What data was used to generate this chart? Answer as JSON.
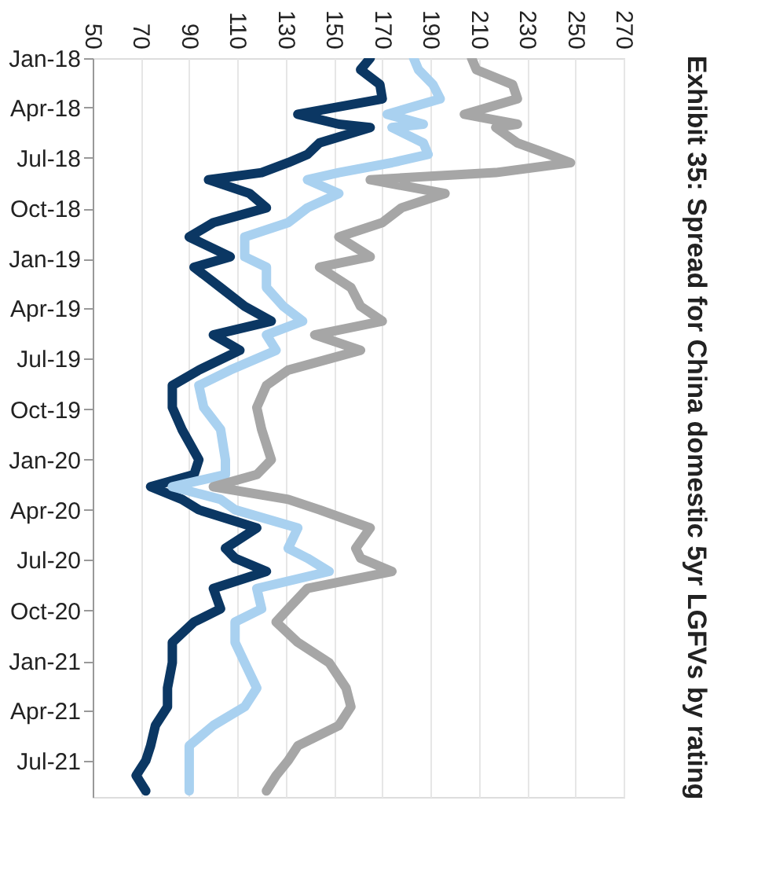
{
  "chart_data": {
    "type": "line",
    "title": "Exhibit 35: Spread for China domestic 5yr LGFVs by rating",
    "orientation": "horizontal",
    "grid": "x",
    "legend": false,
    "line_style": "solid",
    "marker": "none",
    "x": [
      "2018-01-01",
      "2018-01-22",
      "2018-02-18",
      "2018-03-16",
      "2018-04-13",
      "2018-05-01",
      "2018-05-07",
      "2018-06-04",
      "2018-06-25",
      "2018-07-10",
      "2018-07-28",
      "2018-08-10",
      "2018-09-04",
      "2018-09-30",
      "2018-10-27",
      "2018-11-22",
      "2018-12-28",
      "2019-01-16",
      "2019-02-22",
      "2019-03-28",
      "2019-04-24",
      "2019-05-19",
      "2019-06-16",
      "2019-07-22",
      "2019-08-19",
      "2019-09-28",
      "2019-11-07",
      "2020-01-01",
      "2020-01-28",
      "2020-02-19",
      "2020-03-13",
      "2020-04-01",
      "2020-05-04",
      "2020-06-10",
      "2020-06-28",
      "2020-07-22",
      "2020-08-22",
      "2020-09-28",
      "2020-10-22",
      "2020-11-28",
      "2021-01-04",
      "2021-02-19",
      "2021-03-25",
      "2021-04-28",
      "2021-06-04",
      "2021-07-01",
      "2021-07-28",
      "2021-08-25"
    ],
    "series": [
      {
        "color": "#0b3763",
        "values": [
          165,
          161,
          169,
          170,
          135,
          152,
          165,
          144,
          139,
          131,
          120,
          98,
          115,
          122,
          100,
          90,
          107,
          92,
          103,
          113,
          124,
          100,
          111,
          94,
          83,
          83,
          87,
          94,
          92,
          74,
          87,
          94,
          118,
          105,
          109,
          122,
          100,
          103,
          92,
          83,
          83,
          81,
          81,
          76,
          74,
          72,
          68,
          72
        ]
      },
      {
        "color": "#a9d1f0",
        "values": [
          183,
          185,
          191,
          194,
          172,
          187,
          174,
          187,
          189,
          174,
          152,
          139,
          152,
          139,
          131,
          113,
          113,
          122,
          122,
          129,
          137,
          122,
          126,
          107,
          94,
          96,
          103,
          105,
          105,
          83,
          103,
          109,
          135,
          131,
          139,
          148,
          118,
          120,
          109,
          109,
          113,
          118,
          113,
          100,
          90,
          90,
          90,
          90
        ]
      },
      {
        "color": "#a6a6a6",
        "values": [
          207,
          209,
          224,
          226,
          204,
          226,
          217,
          226,
          239,
          248,
          217,
          165,
          196,
          178,
          170,
          152,
          165,
          144,
          157,
          161,
          170,
          142,
          161,
          131,
          122,
          118,
          120,
          124,
          118,
          100,
          131,
          144,
          165,
          159,
          161,
          174,
          139,
          131,
          126,
          135,
          148,
          155,
          157,
          152,
          135,
          131,
          126,
          122
        ]
      }
    ],
    "xlim": [
      50,
      270
    ],
    "xticks": [
      50,
      70,
      90,
      110,
      130,
      150,
      170,
      190,
      210,
      230,
      250,
      270
    ],
    "ylim": [
      "2021-09-05",
      "2018-01-01"
    ],
    "yticks": [
      {
        "value": "2018-01",
        "label": "Jan-18"
      },
      {
        "value": "2018-04",
        "label": "Apr-18"
      },
      {
        "value": "2018-07",
        "label": "Jul-18"
      },
      {
        "value": "2018-10",
        "label": "Oct-18"
      },
      {
        "value": "2019-01",
        "label": "Jan-19"
      },
      {
        "value": "2019-04",
        "label": "Apr-19"
      },
      {
        "value": "2019-07",
        "label": "Jul-19"
      },
      {
        "value": "2019-10",
        "label": "Oct-19"
      },
      {
        "value": "2020-01",
        "label": "Jan-20"
      },
      {
        "value": "2020-04",
        "label": "Apr-20"
      },
      {
        "value": "2020-07",
        "label": "Jul-20"
      },
      {
        "value": "2020-10",
        "label": "Oct-20"
      },
      {
        "value": "2021-01",
        "label": "Jan-21"
      },
      {
        "value": "2021-04",
        "label": "Apr-21"
      },
      {
        "value": "2021-07",
        "label": "Jul-21"
      }
    ]
  }
}
